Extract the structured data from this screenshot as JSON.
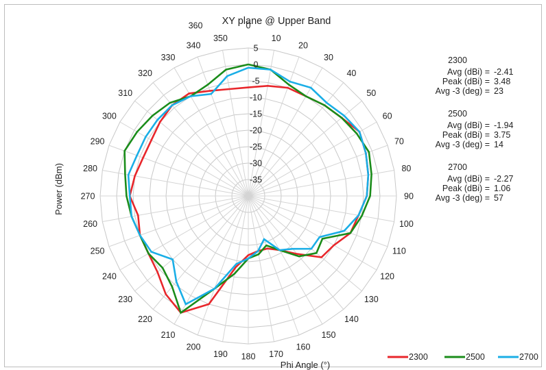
{
  "chart_data": {
    "type": "polar-line",
    "title": "XY plane @ Upper Band",
    "xlabel": "Phi Angle (°)",
    "ylabel": "Power (dBm)",
    "angle_ticks": [
      "0",
      "10",
      "20",
      "30",
      "40",
      "50",
      "60",
      "70",
      "80",
      "90",
      "100",
      "110",
      "120",
      "130",
      "140",
      "150",
      "160",
      "170",
      "180",
      "190",
      "200",
      "210",
      "220",
      "230",
      "240",
      "250",
      "260",
      "270",
      "280",
      "290",
      "300",
      "310",
      "320",
      "330",
      "340",
      "350",
      "360"
    ],
    "radial_ticks": [
      "5",
      "0",
      "-5",
      "-10",
      "-15",
      "-20",
      "-25",
      "-30",
      "-35"
    ],
    "radial_range": [
      -40,
      5
    ],
    "angles": [
      0,
      10,
      20,
      30,
      40,
      50,
      60,
      70,
      80,
      90,
      100,
      110,
      120,
      130,
      140,
      150,
      160,
      170,
      180,
      190,
      200,
      210,
      220,
      230,
      240,
      250,
      260,
      270,
      280,
      290,
      300,
      310,
      320,
      330,
      340,
      350
    ],
    "series": [
      {
        "name": "2300",
        "color": "#e8262b",
        "values": [
          -7,
          -6,
          -5,
          -5,
          -4,
          -3,
          -1,
          -2,
          -3,
          -4,
          -6,
          -7,
          -10,
          -11,
          -17,
          -21,
          -23,
          -23,
          -22,
          -18,
          -5,
          1,
          -1,
          -4,
          -5,
          -5,
          -6,
          -4,
          -5,
          -6,
          -6,
          -5,
          -4,
          -4,
          -6,
          -7
        ]
      },
      {
        "name": "2500",
        "color": "#1a8c1a",
        "values": [
          0,
          -1,
          -4,
          -5,
          -4,
          -3,
          -2,
          -1,
          -2,
          -3,
          -5,
          -7,
          -14,
          -13,
          -16,
          -21,
          -24,
          -22,
          -21,
          -16,
          -10,
          1,
          -4,
          -6,
          -5,
          -5,
          -4,
          -3,
          -2,
          0,
          -1,
          -2,
          -3,
          -5,
          -4,
          -1
        ]
      },
      {
        "name": "2700",
        "color": "#1aaee6",
        "values": [
          -1,
          -1,
          -3,
          -2,
          -3,
          -2,
          -1,
          -2,
          -3,
          -4,
          -6,
          -9,
          -15,
          -15,
          -19,
          -21,
          -26,
          -23,
          -21,
          -19,
          -10,
          -2,
          -6,
          -10,
          -6,
          -5,
          -4,
          -4,
          -3,
          -4,
          -4,
          -4,
          -4,
          -5,
          -7,
          -3
        ]
      }
    ],
    "stats": [
      {
        "band": "2300",
        "avg": "-2.41",
        "peak": "3.48",
        "avg3": "23"
      },
      {
        "band": "2500",
        "avg": "-1.94",
        "peak": "3.75",
        "avg3": "14"
      },
      {
        "band": "2700",
        "avg": "-2.27",
        "peak": "1.06",
        "avg3": "57"
      }
    ],
    "stat_labels": {
      "avg": "Avg (dBi) =",
      "peak": "Peak (dBi) =",
      "avg3": "Avg -3 (deg) ="
    },
    "legend_position": "bottom-right",
    "grid": true
  }
}
